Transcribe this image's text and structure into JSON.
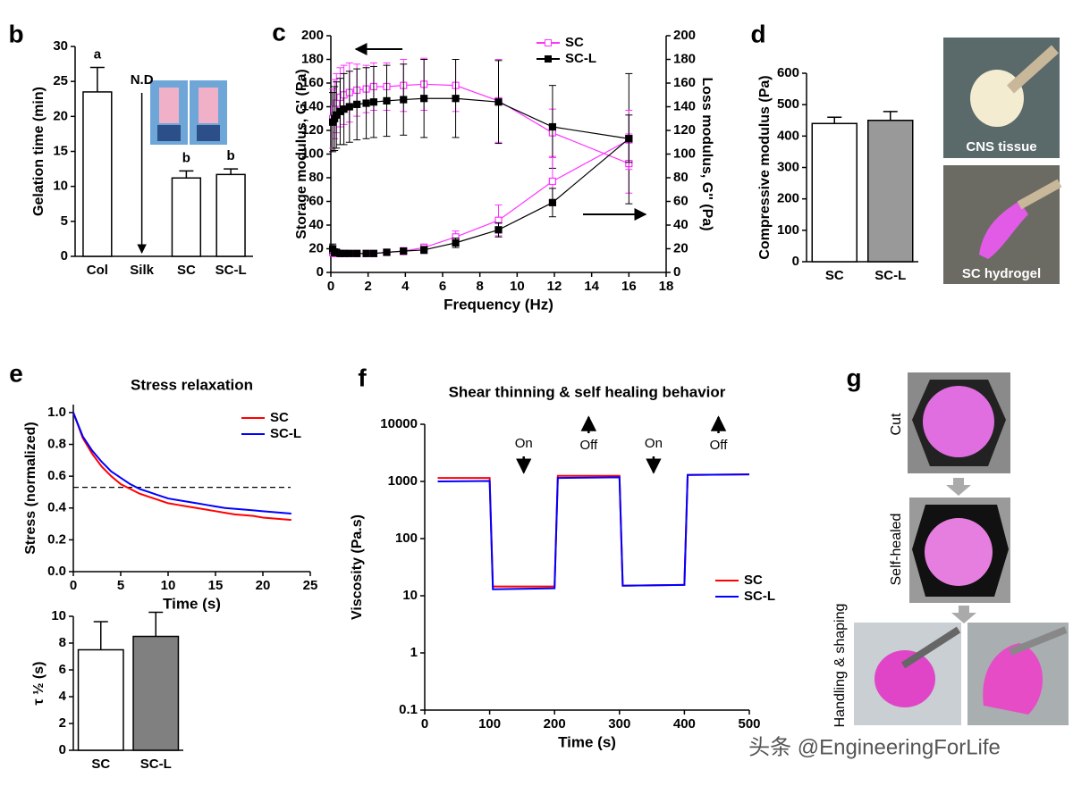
{
  "chart_data": [
    {
      "type": "bar",
      "panel": "b",
      "ylabel": "Gelation time (min)",
      "categories": [
        "Col",
        "Silk",
        "SC",
        "SC-L"
      ],
      "values": [
        23.5,
        null,
        11.2,
        11.7
      ],
      "errors": [
        3.5,
        null,
        1.0,
        0.8
      ],
      "annotations": [
        "a",
        "N.D",
        "b",
        "b"
      ],
      "colors": [
        "#ffffff",
        "#ffffff",
        "#ffffff",
        "#ffffff"
      ],
      "ylim": [
        0,
        30
      ],
      "yticks": [
        0,
        5,
        10,
        15,
        20,
        25,
        30
      ]
    },
    {
      "type": "line",
      "panel": "c",
      "xlabel": "Frequency (Hz)",
      "ylabel": "Storage modulus, G' (Pa)",
      "y2label": "Loss modulus, G'' (Pa)",
      "x": [
        0.1,
        0.2,
        0.3,
        0.5,
        0.7,
        1.0,
        1.4,
        1.9,
        2.3,
        3.0,
        3.9,
        5.0,
        6.7,
        9.0,
        11.9,
        16.0
      ],
      "series": [
        {
          "name": "SC",
          "color": "#ff33ff",
          "marker": "open-square",
          "values": [
            130,
            138,
            143,
            148,
            150,
            152,
            154,
            155,
            157,
            157,
            158,
            159,
            158,
            145,
            118,
            92
          ],
          "errors": [
            25,
            25,
            25,
            25,
            25,
            25,
            22,
            20,
            20,
            20,
            22,
            22,
            22,
            35,
            20,
            25
          ]
        },
        {
          "name": "SC-L",
          "color": "#000000",
          "marker": "square",
          "values": [
            127,
            130,
            133,
            136,
            138,
            140,
            142,
            143,
            144,
            145,
            146,
            147,
            147,
            144,
            123,
            113
          ],
          "errors": [
            25,
            27,
            28,
            28,
            30,
            30,
            30,
            30,
            30,
            30,
            30,
            33,
            33,
            35,
            35,
            55
          ]
        },
        {
          "name": "SC",
          "color": "#ff33ff",
          "marker": "open-square",
          "axis": "y2",
          "values": [
            17,
            16,
            16,
            16,
            16,
            16,
            16,
            16,
            16,
            17,
            18,
            21,
            30,
            44,
            77,
            112
          ],
          "errors": [
            3,
            2,
            2,
            2,
            2,
            2,
            2,
            2,
            2,
            2,
            3,
            3,
            5,
            13,
            20,
            25
          ]
        },
        {
          "name": "SC-L",
          "color": "#000000",
          "marker": "square",
          "axis": "y2",
          "values": [
            20,
            17,
            17,
            16,
            16,
            16,
            16,
            16,
            16,
            17,
            18,
            19,
            25,
            36,
            59,
            113
          ],
          "errors": [
            4,
            3,
            2,
            2,
            2,
            2,
            2,
            2,
            2,
            2,
            2,
            3,
            4,
            6,
            12,
            20
          ]
        }
      ],
      "xlim": [
        0,
        18
      ],
      "xticks": [
        0,
        2,
        4,
        6,
        8,
        10,
        12,
        14,
        16,
        18
      ],
      "ylim": [
        0,
        200
      ],
      "yticks": [
        0,
        20,
        40,
        60,
        80,
        100,
        120,
        140,
        160,
        180,
        200
      ],
      "y2lim": [
        0,
        200
      ],
      "y2ticks": [
        0,
        20,
        40,
        60,
        80,
        100,
        120,
        140,
        160,
        180,
        200
      ],
      "legend": "upper right"
    },
    {
      "type": "bar",
      "panel": "d",
      "ylabel": "Compressive modulus (Pa)",
      "categories": [
        "SC",
        "SC-L"
      ],
      "values": [
        440,
        450
      ],
      "errors": [
        20,
        28
      ],
      "colors": [
        "#ffffff",
        "#999999"
      ],
      "ylim": [
        0,
        600
      ],
      "yticks": [
        0,
        100,
        200,
        300,
        400,
        500,
        600
      ]
    },
    {
      "type": "line",
      "panel": "e",
      "title": "Stress relaxation",
      "xlabel": "Time (s)",
      "ylabel": "Stress (normalized)",
      "x": [
        0,
        1,
        2,
        3,
        4,
        5,
        6,
        7,
        8,
        9,
        10,
        11,
        12,
        13,
        14,
        15,
        16,
        17,
        18,
        19,
        20,
        21,
        22,
        23
      ],
      "series": [
        {
          "name": "SC",
          "color": "#ff0000",
          "values": [
            1.0,
            0.84,
            0.74,
            0.66,
            0.6,
            0.55,
            0.52,
            0.49,
            0.47,
            0.45,
            0.43,
            0.42,
            0.41,
            0.4,
            0.39,
            0.38,
            0.37,
            0.36,
            0.355,
            0.35,
            0.34,
            0.335,
            0.33,
            0.325
          ]
        },
        {
          "name": "SC-L",
          "color": "#0000ff",
          "values": [
            1.0,
            0.85,
            0.76,
            0.69,
            0.63,
            0.59,
            0.55,
            0.52,
            0.5,
            0.48,
            0.46,
            0.45,
            0.44,
            0.43,
            0.42,
            0.41,
            0.4,
            0.395,
            0.39,
            0.385,
            0.38,
            0.375,
            0.37,
            0.365
          ]
        }
      ],
      "hline": 0.53,
      "xlim": [
        0,
        25
      ],
      "xticks": [
        0,
        5,
        10,
        15,
        20,
        25
      ],
      "ylim": [
        0,
        1.05
      ],
      "yticks": [
        {
          "value": 0,
          "label": "0.0"
        },
        0.2,
        0.4,
        0.6,
        0.8,
        {
          "value": 1,
          "label": "1.0"
        }
      ],
      "legend": "upper right"
    },
    {
      "type": "bar",
      "ylabel": "τ ½ (s)",
      "categories": [
        "SC",
        "SC-L"
      ],
      "values": [
        7.5,
        8.5
      ],
      "errors": [
        2.1,
        1.8
      ],
      "colors": [
        "#ffffff",
        "#808080"
      ],
      "ylim": [
        0,
        10
      ],
      "yticks": [
        0,
        2,
        4,
        6,
        8,
        10
      ]
    },
    {
      "type": "line",
      "panel": "f",
      "title": "Shear thinning & self healing behavior",
      "xlabel": "Time (s)",
      "ylabel": "Viscosity (Pa.s)",
      "x": [
        20,
        100,
        105,
        200,
        205,
        300,
        305,
        400,
        405,
        500
      ],
      "series": [
        {
          "name": "SC",
          "color": "#ff0000",
          "values": [
            1150,
            1150,
            14.5,
            14.5,
            1250,
            1250,
            15,
            15.5,
            1300,
            1330
          ]
        },
        {
          "name": "SC-L",
          "color": "#0000ff",
          "values": [
            1000,
            1020,
            13,
            13.5,
            1150,
            1180,
            15,
            15.5,
            1300,
            1330
          ]
        }
      ],
      "annotations": [
        "On",
        "Off",
        "On",
        "Off"
      ],
      "yscale": "log",
      "xlim": [
        0,
        500
      ],
      "xticks": [
        0,
        100,
        200,
        300,
        400,
        500
      ],
      "ylim": [
        0.1,
        10000
      ],
      "yticks": [
        0.1,
        1,
        10,
        100,
        1000,
        10000
      ],
      "legend": "lower right"
    }
  ],
  "panel_g": "g",
  "photos": [
    "CNS tissue",
    "SC hydrogel",
    "Cut",
    "Self-healed",
    "Handling & shaping"
  ],
  "watermark": "头条 @EngineeringForLife"
}
